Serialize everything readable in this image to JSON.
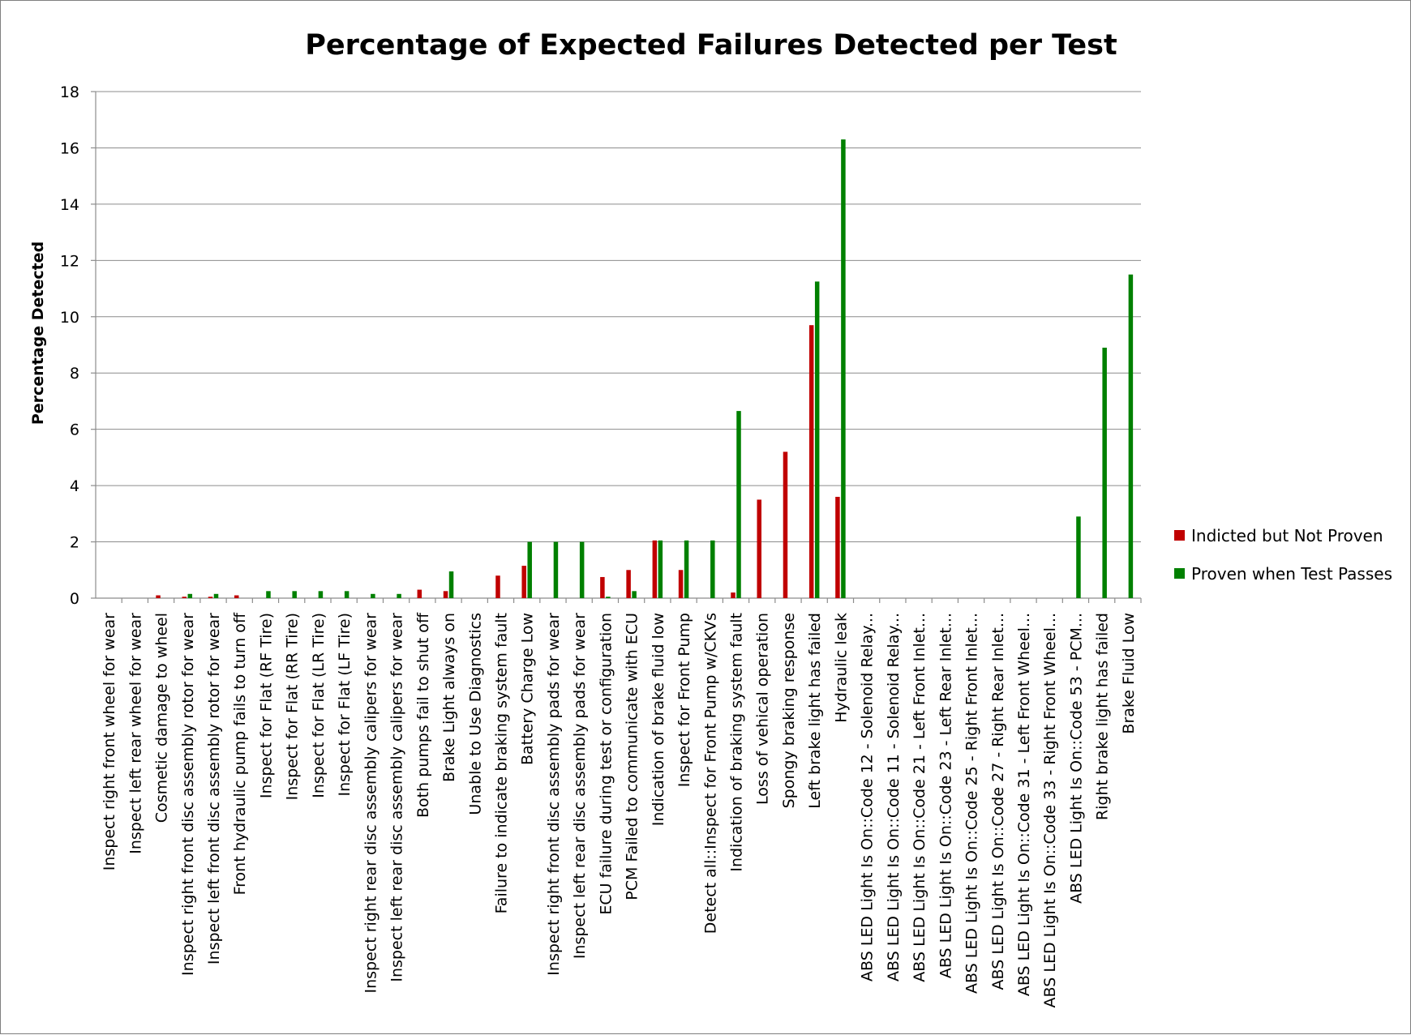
{
  "chart_data": {
    "type": "bar",
    "title": "Percentage of Expected Failures Detected per Test",
    "ylabel": "Percentage Detected",
    "xlabel": "",
    "ylim": [
      0,
      18
    ],
    "yticks": [
      0,
      2,
      4,
      6,
      8,
      10,
      12,
      14,
      16,
      18
    ],
    "grid": true,
    "legend_position": "right",
    "categories": [
      "Inspect right front wheel for wear",
      "Inspect left rear wheel for wear",
      "Cosmetic damage to wheel",
      "Inspect right front disc assembly rotor for wear",
      "Inspect left front disc assembly rotor for wear",
      "Front hydraulic pump fails to turn off",
      "Inspect for Flat (RF Tire)",
      "Inspect for Flat (RR Tire)",
      "Inspect for Flat (LR Tire)",
      "Inspect for Flat (LF Tire)",
      "Inspect right rear disc assembly calipers for wear",
      "Inspect left rear disc assembly calipers for wear",
      "Both pumps fail to shut off",
      "Brake Light always on",
      "Unable to Use Diagnostics",
      "Failure to indicate braking system fault",
      "Battery Charge Low",
      "Inspect right front disc assembly pads for wear",
      "Inspect left rear disc assembly pads for wear",
      "ECU failure during test or configuration",
      "PCM Failed to communicate with ECU",
      "Indication of brake fluid low",
      "Inspect for Front Pump",
      "Detect all::Inspect for Front Pump w/CKVs",
      "Indication of braking system fault",
      "Loss of vehical operation",
      "Spongy braking response",
      "Left brake light has failed",
      "Hydraulic leak",
      "ABS LED Light Is On::Code 12 - Solenoid Relay...",
      "ABS LED Light Is On::Code 11 - Solenoid Relay...",
      "ABS LED Light Is On::Code 21 - Left Front Inlet...",
      "ABS LED Light Is On::Code 23 - Left Rear Inlet...",
      "ABS LED Light Is On::Code 25 - Right Front Inlet...",
      "ABS LED Light Is On::Code 27 - Right Rear Inlet...",
      "ABS LED Light Is On::Code 31 - Left Front Wheel...",
      "ABS LED Light Is On::Code 33 - Right Front Wheel...",
      "ABS LED Light Is On::Code 53 - PCM...",
      "Right brake light has failed",
      "Brake Fluid Low"
    ],
    "series": [
      {
        "name": "Indicted but Not Proven",
        "color": "#c00000",
        "values": [
          0,
          0,
          0.1,
          0.05,
          0.05,
          0.1,
          0,
          0,
          0,
          0,
          0,
          0,
          0.3,
          0.25,
          0,
          0.8,
          1.15,
          0,
          0,
          0.75,
          1.0,
          2.05,
          1.0,
          0,
          0.2,
          3.5,
          5.2,
          9.7,
          3.6,
          0,
          0,
          0,
          0,
          0,
          0,
          0,
          0,
          0,
          0,
          0
        ]
      },
      {
        "name": "Proven when Test Passes",
        "color": "#008000",
        "values": [
          0,
          0,
          0,
          0.15,
          0.15,
          0,
          0.25,
          0.25,
          0.25,
          0.25,
          0.15,
          0.15,
          0,
          0.95,
          0,
          0,
          2.0,
          2.0,
          2.0,
          0.05,
          0.25,
          2.05,
          2.05,
          2.05,
          6.65,
          0,
          0,
          11.25,
          16.3,
          0,
          0,
          0,
          0,
          0,
          0,
          0,
          0,
          2.9,
          8.9,
          11.5
        ]
      }
    ]
  }
}
